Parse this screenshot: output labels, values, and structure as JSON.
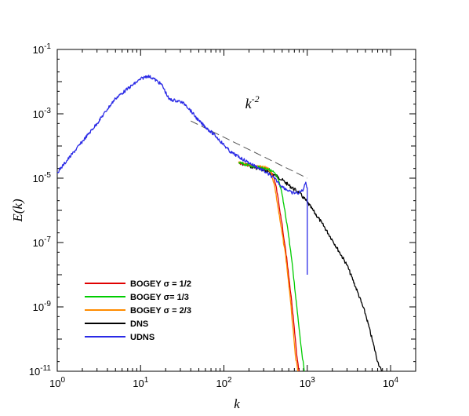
{
  "chart_data": {
    "type": "line",
    "xscale": "log",
    "yscale": "log",
    "xlim": [
      1,
      20000
    ],
    "ylim": [
      1e-11,
      0.1
    ],
    "xlabel": "k",
    "ylabel": "E(k)",
    "legend_position": "lower-left",
    "grid": false,
    "x_ticks": [
      {
        "value": 1,
        "base": "10",
        "exp": "0"
      },
      {
        "value": 10,
        "base": "10",
        "exp": "1"
      },
      {
        "value": 100,
        "base": "10",
        "exp": "2"
      },
      {
        "value": 1000,
        "base": "10",
        "exp": "3"
      },
      {
        "value": 10000,
        "base": "10",
        "exp": "4"
      }
    ],
    "y_ticks": [
      {
        "value": 1e-11,
        "base": "10",
        "exp": "-11"
      },
      {
        "value": 1e-09,
        "base": "10",
        "exp": "-9"
      },
      {
        "value": 1e-07,
        "base": "10",
        "exp": "-7"
      },
      {
        "value": 1e-05,
        "base": "10",
        "exp": "-5"
      },
      {
        "value": 0.001,
        "base": "10",
        "exp": "-3"
      },
      {
        "value": 0.1,
        "base": "10",
        "exp": "-1"
      }
    ],
    "reference_line": {
      "points": [
        [
          40,
          0.0006
        ],
        [
          1000,
          1e-05
        ]
      ],
      "label_base": "k",
      "label_exp": "-2",
      "label_at": [
        180,
        0.0015
      ],
      "color": "#555555"
    },
    "series": [
      {
        "name": "BOGEY σ = 1/2",
        "color": "#e00000",
        "noise": 0.18,
        "points": [
          [
            150,
            3e-05
          ],
          [
            250,
            2.2e-05
          ],
          [
            330,
            2e-05
          ],
          [
            380,
            1.4e-05
          ],
          [
            420,
            6e-06
          ],
          [
            480,
            7e-07
          ],
          [
            550,
            6e-08
          ],
          [
            650,
            1.5e-09
          ],
          [
            750,
            3e-11
          ],
          [
            800,
            1e-11
          ]
        ]
      },
      {
        "name": "BOGEY σ= 1/3",
        "color": "#00cc00",
        "noise": 0.18,
        "points": [
          [
            150,
            3e-05
          ],
          [
            250,
            2.2e-05
          ],
          [
            330,
            2e-05
          ],
          [
            400,
            1.5e-05
          ],
          [
            450,
            9e-06
          ],
          [
            500,
            3e-06
          ],
          [
            580,
            3e-07
          ],
          [
            650,
            3e-08
          ],
          [
            750,
            1e-09
          ],
          [
            850,
            5e-11
          ],
          [
            920,
            1e-11
          ]
        ]
      },
      {
        "name": "BOGEY σ = 2/3",
        "color": "#ff8c00",
        "noise": 0.18,
        "points": [
          [
            150,
            3e-05
          ],
          [
            250,
            2.3e-05
          ],
          [
            330,
            2.1e-05
          ],
          [
            370,
            1.5e-05
          ],
          [
            410,
            5e-06
          ],
          [
            470,
            5e-07
          ],
          [
            550,
            4e-08
          ],
          [
            630,
            1.5e-09
          ],
          [
            720,
            3e-11
          ],
          [
            770,
            1e-11
          ]
        ]
      },
      {
        "name": "DNS",
        "color": "#000000",
        "noise": 0.22,
        "points": [
          [
            150,
            3e-05
          ],
          [
            300,
            1.8e-05
          ],
          [
            450,
            1.1e-05
          ],
          [
            600,
            6e-06
          ],
          [
            800,
            3.5e-06
          ],
          [
            1000,
            1.8e-06
          ],
          [
            1500,
            4e-07
          ],
          [
            2000,
            1.2e-07
          ],
          [
            3000,
            2e-08
          ],
          [
            4000,
            3e-09
          ],
          [
            5000,
            6e-10
          ],
          [
            6000,
            1e-10
          ],
          [
            7000,
            2e-11
          ],
          [
            7800,
            1e-11
          ]
        ]
      },
      {
        "name": "UDNS",
        "color": "#2a2ae6",
        "noise": 0.2,
        "points": [
          [
            1,
            1.5e-05
          ],
          [
            3,
            0.0005
          ],
          [
            4,
            0.0014
          ],
          [
            5,
            0.003
          ],
          [
            7,
            0.006
          ],
          [
            10,
            0.012
          ],
          [
            12,
            0.015
          ],
          [
            14,
            0.013
          ],
          [
            18,
            0.008
          ],
          [
            22,
            0.0028
          ],
          [
            26,
            0.0026
          ],
          [
            30,
            0.0024
          ],
          [
            35,
            0.0019
          ],
          [
            50,
            0.0006
          ],
          [
            80,
            0.0002
          ],
          [
            120,
            6.5e-05
          ],
          [
            200,
            3e-05
          ],
          [
            300,
            1.7e-05
          ],
          [
            400,
            1e-05
          ],
          [
            500,
            5.5e-06
          ],
          [
            650,
            3.5e-06
          ],
          [
            800,
            3.5e-06
          ],
          [
            900,
            4.5e-06
          ],
          [
            960,
            7.5e-06
          ],
          [
            1000,
            5e-06
          ],
          [
            1000,
            1e-08
          ]
        ]
      }
    ]
  }
}
